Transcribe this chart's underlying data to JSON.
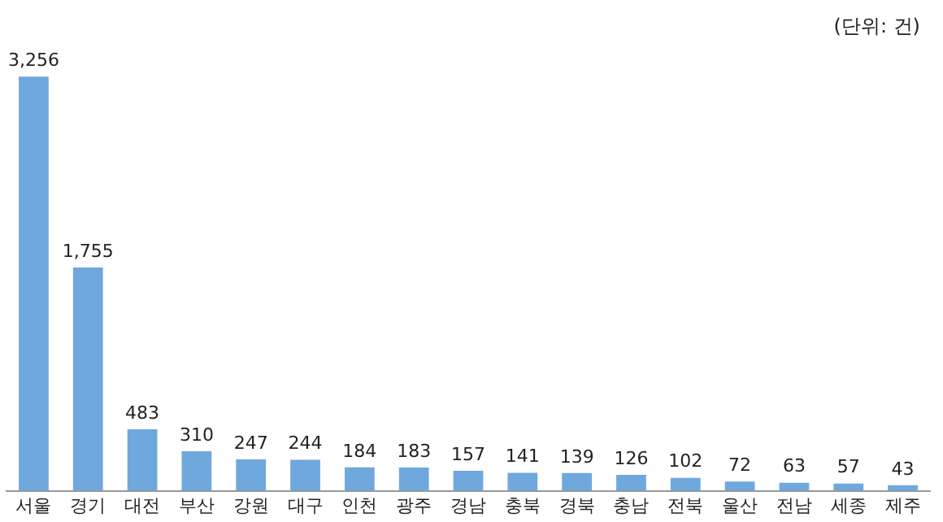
{
  "chart_data": {
    "type": "bar",
    "annotations": [
      "(단위: 건)"
    ],
    "categories": [
      "서울",
      "경기",
      "대전",
      "부산",
      "강원",
      "대구",
      "인천",
      "광주",
      "경남",
      "충북",
      "경북",
      "충남",
      "전북",
      "울산",
      "전남",
      "세종",
      "제주"
    ],
    "values": [
      3256,
      1755,
      483,
      310,
      247,
      244,
      184,
      183,
      157,
      141,
      139,
      126,
      102,
      72,
      63,
      57,
      43
    ],
    "value_labels": [
      "3,256",
      "1,755",
      "483",
      "310",
      "247",
      "244",
      "184",
      "183",
      "157",
      "141",
      "139",
      "126",
      "102",
      "72",
      "63",
      "57",
      "43"
    ],
    "color": "#6fa8dc",
    "grid": false,
    "legend": false
  }
}
